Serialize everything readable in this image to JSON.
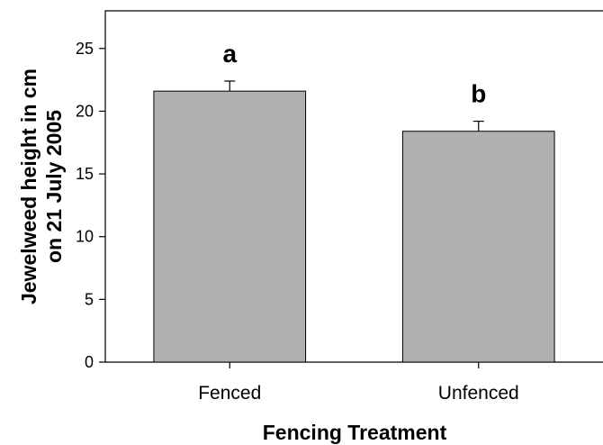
{
  "chart_data": {
    "type": "bar",
    "categories": [
      "Fenced",
      "Unfenced"
    ],
    "values": [
      21.6,
      18.4
    ],
    "error": [
      0.8,
      0.8
    ],
    "significance_labels": [
      "a",
      "b"
    ],
    "xlabel": "Fencing Treatment",
    "ylabel_lines": [
      "Jewelweed height in cm",
      "on 21 July 2005"
    ],
    "ylim": [
      0,
      28
    ],
    "yticks": [
      0,
      5,
      10,
      15,
      20,
      25
    ],
    "grid": false,
    "bar_color": "#b0b0b0",
    "edge_color": "#000000"
  }
}
